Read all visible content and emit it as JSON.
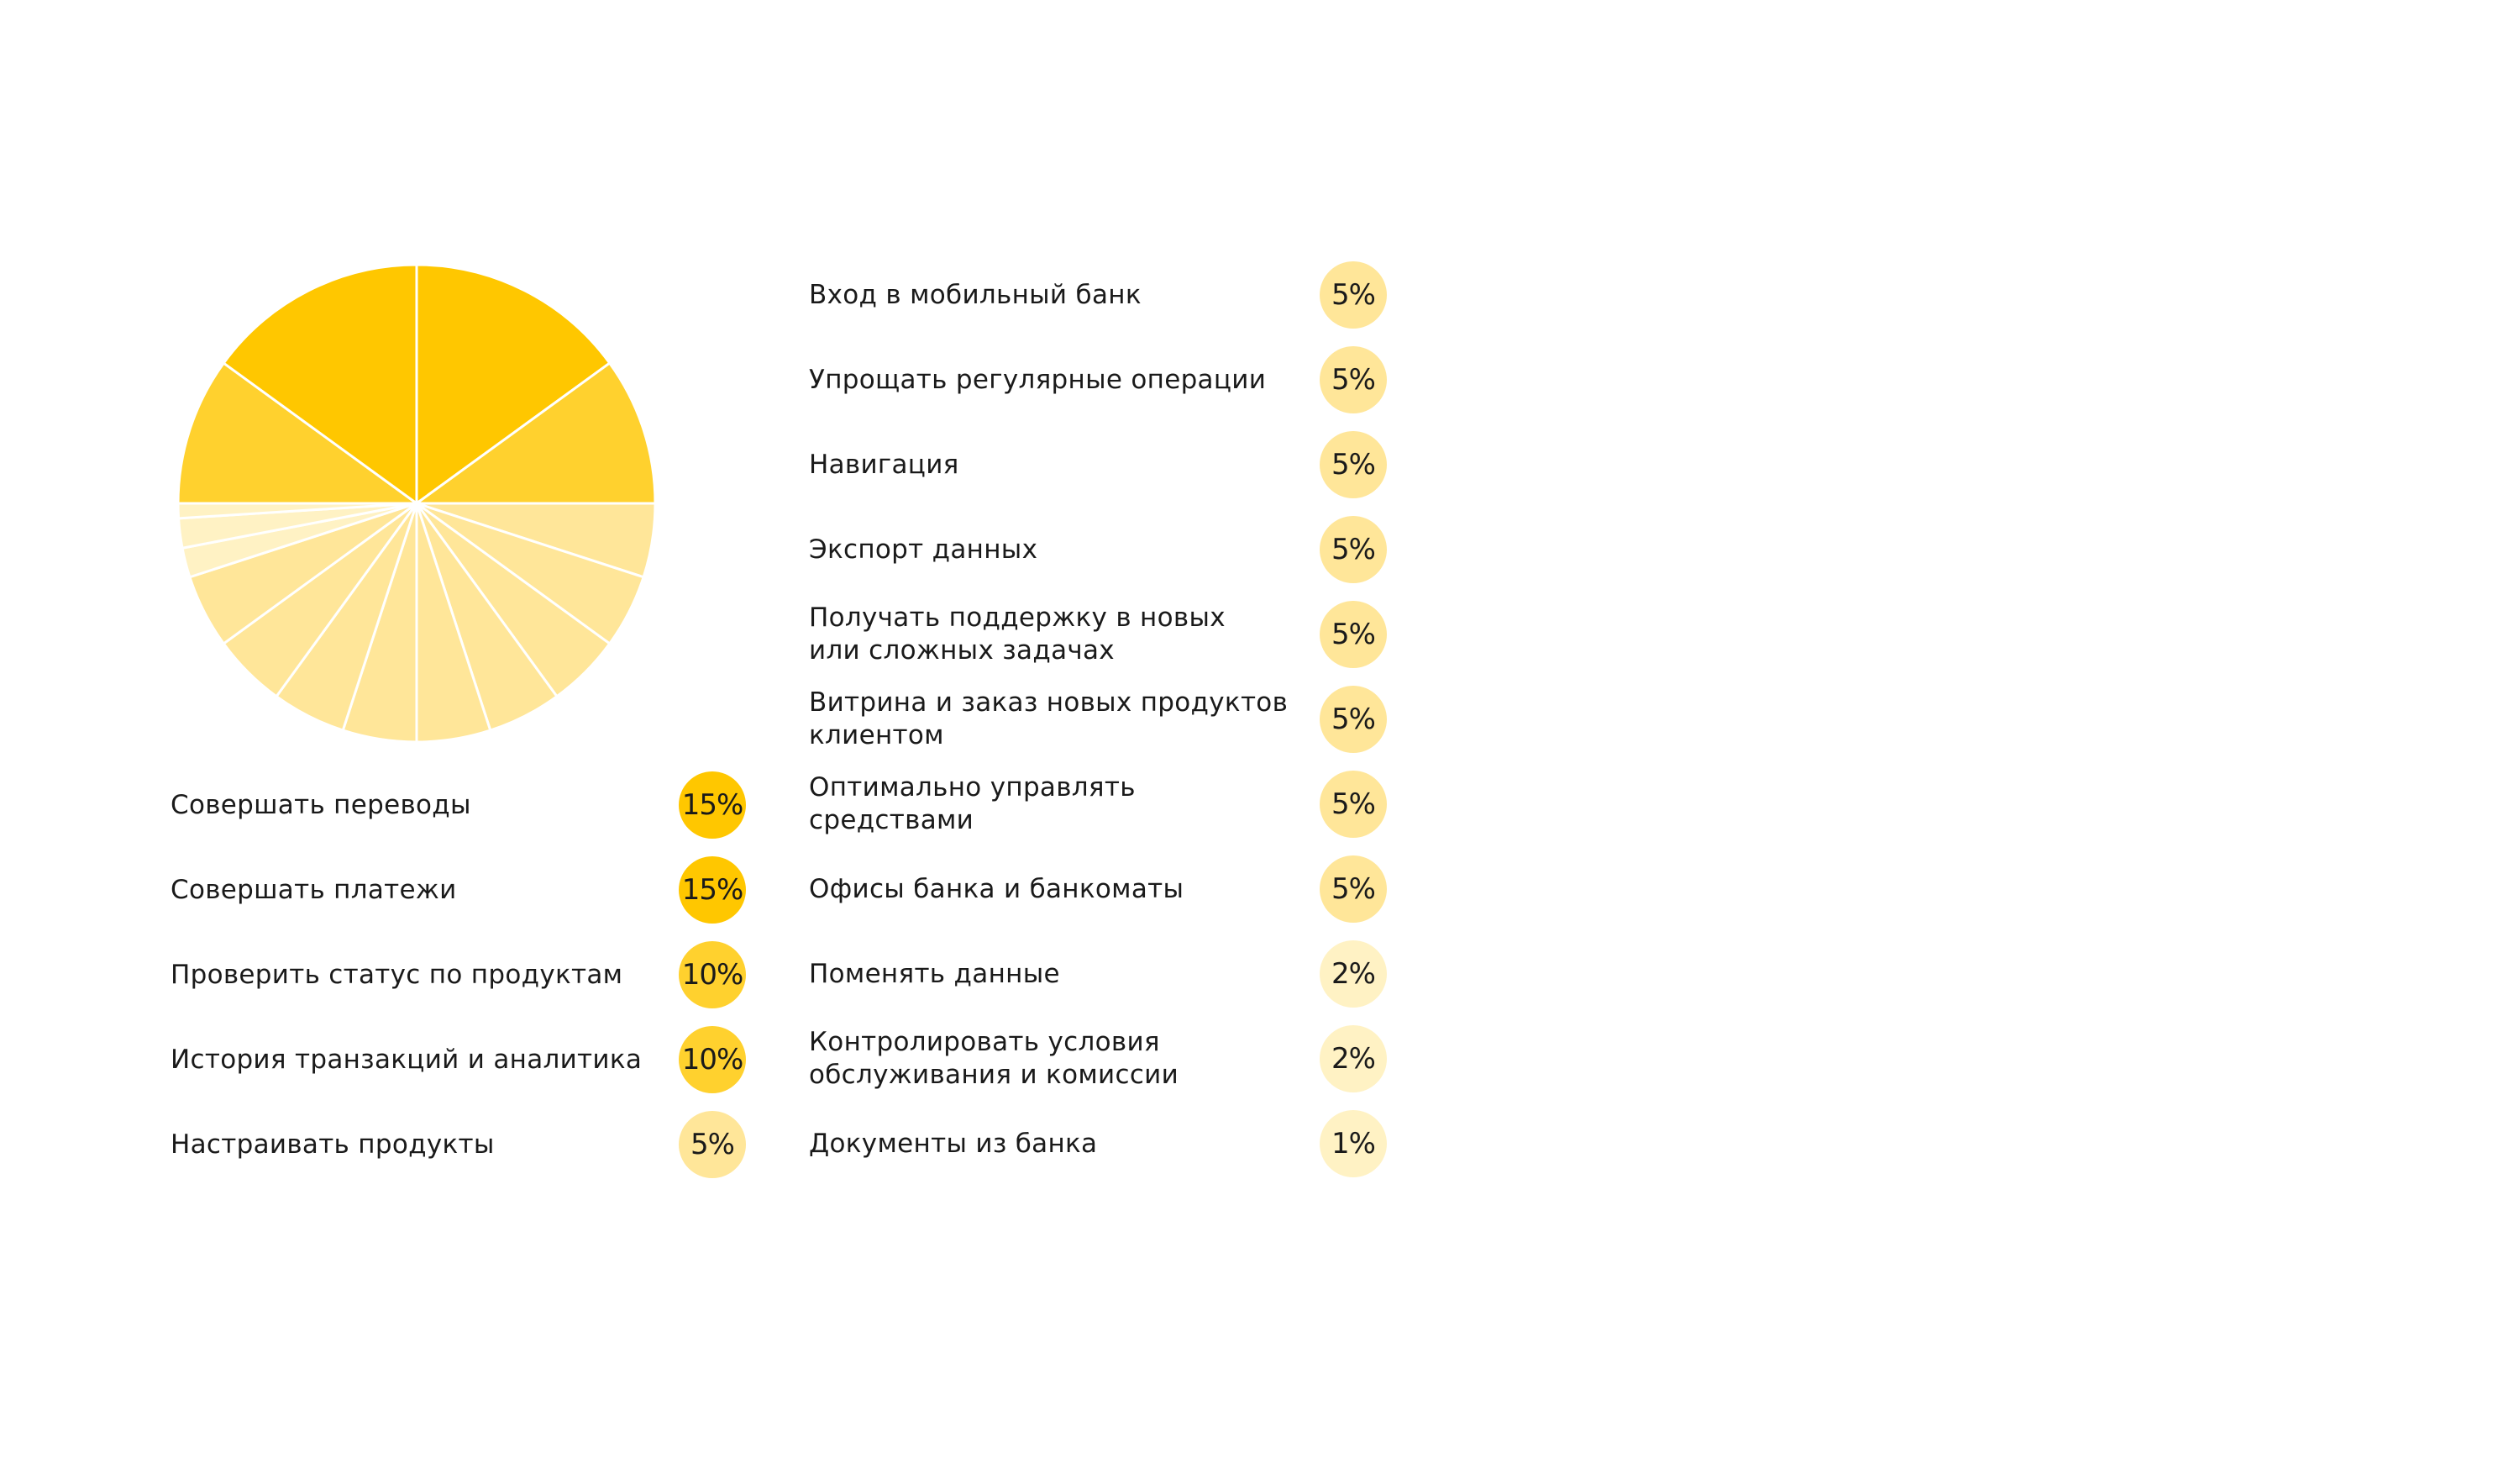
{
  "chart_data": {
    "type": "pie",
    "title": "",
    "colors": {
      "high": "#ffc700",
      "medium": "#ffd12e",
      "low": "#ffe699",
      "lowest": "#fff2c4"
    },
    "slices": [
      {
        "label": "Совершать переводы",
        "value": 15,
        "value_label": "15%",
        "color": "#ffc700"
      },
      {
        "label": "Совершать платежи",
        "value": 15,
        "value_label": "15%",
        "color": "#ffc700"
      },
      {
        "label": "Проверить статус по продуктам",
        "value": 10,
        "value_label": "10%",
        "color": "#ffd12e"
      },
      {
        "label": "История транзакций и аналитика",
        "value": 10,
        "value_label": "10%",
        "color": "#ffd12e"
      },
      {
        "label": "Настраивать продукты",
        "value": 5,
        "value_label": "5%",
        "color": "#ffe699"
      },
      {
        "label": "Вход в мобильный банк",
        "value": 5,
        "value_label": "5%",
        "color": "#ffe699"
      },
      {
        "label": "Упрощать регулярные операции",
        "value": 5,
        "value_label": "5%",
        "color": "#ffe699"
      },
      {
        "label": "Навигация",
        "value": 5,
        "value_label": "5%",
        "color": "#ffe699"
      },
      {
        "label": "Экспорт данных",
        "value": 5,
        "value_label": "5%",
        "color": "#ffe699"
      },
      {
        "label": "Получать поддержку в новых\nили сложных задачах",
        "value": 5,
        "value_label": "5%",
        "color": "#ffe699"
      },
      {
        "label": "Витрина и заказ новых продуктов\nклиентом",
        "value": 5,
        "value_label": "5%",
        "color": "#ffe699"
      },
      {
        "label": "Оптимально управлять\nсредствами",
        "value": 5,
        "value_label": "5%",
        "color": "#ffe699"
      },
      {
        "label": "Офисы банка и банкоматы",
        "value": 5,
        "value_label": "5%",
        "color": "#ffe699"
      },
      {
        "label": "Поменять данные",
        "value": 2,
        "value_label": "2%",
        "color": "#fff2c4"
      },
      {
        "label": "Контролировать условия\nобслуживания и комиссии",
        "value": 2,
        "value_label": "2%",
        "color": "#fff2c4"
      },
      {
        "label": "Документы из банка",
        "value": 1,
        "value_label": "1%",
        "color": "#fff2c4"
      }
    ]
  }
}
